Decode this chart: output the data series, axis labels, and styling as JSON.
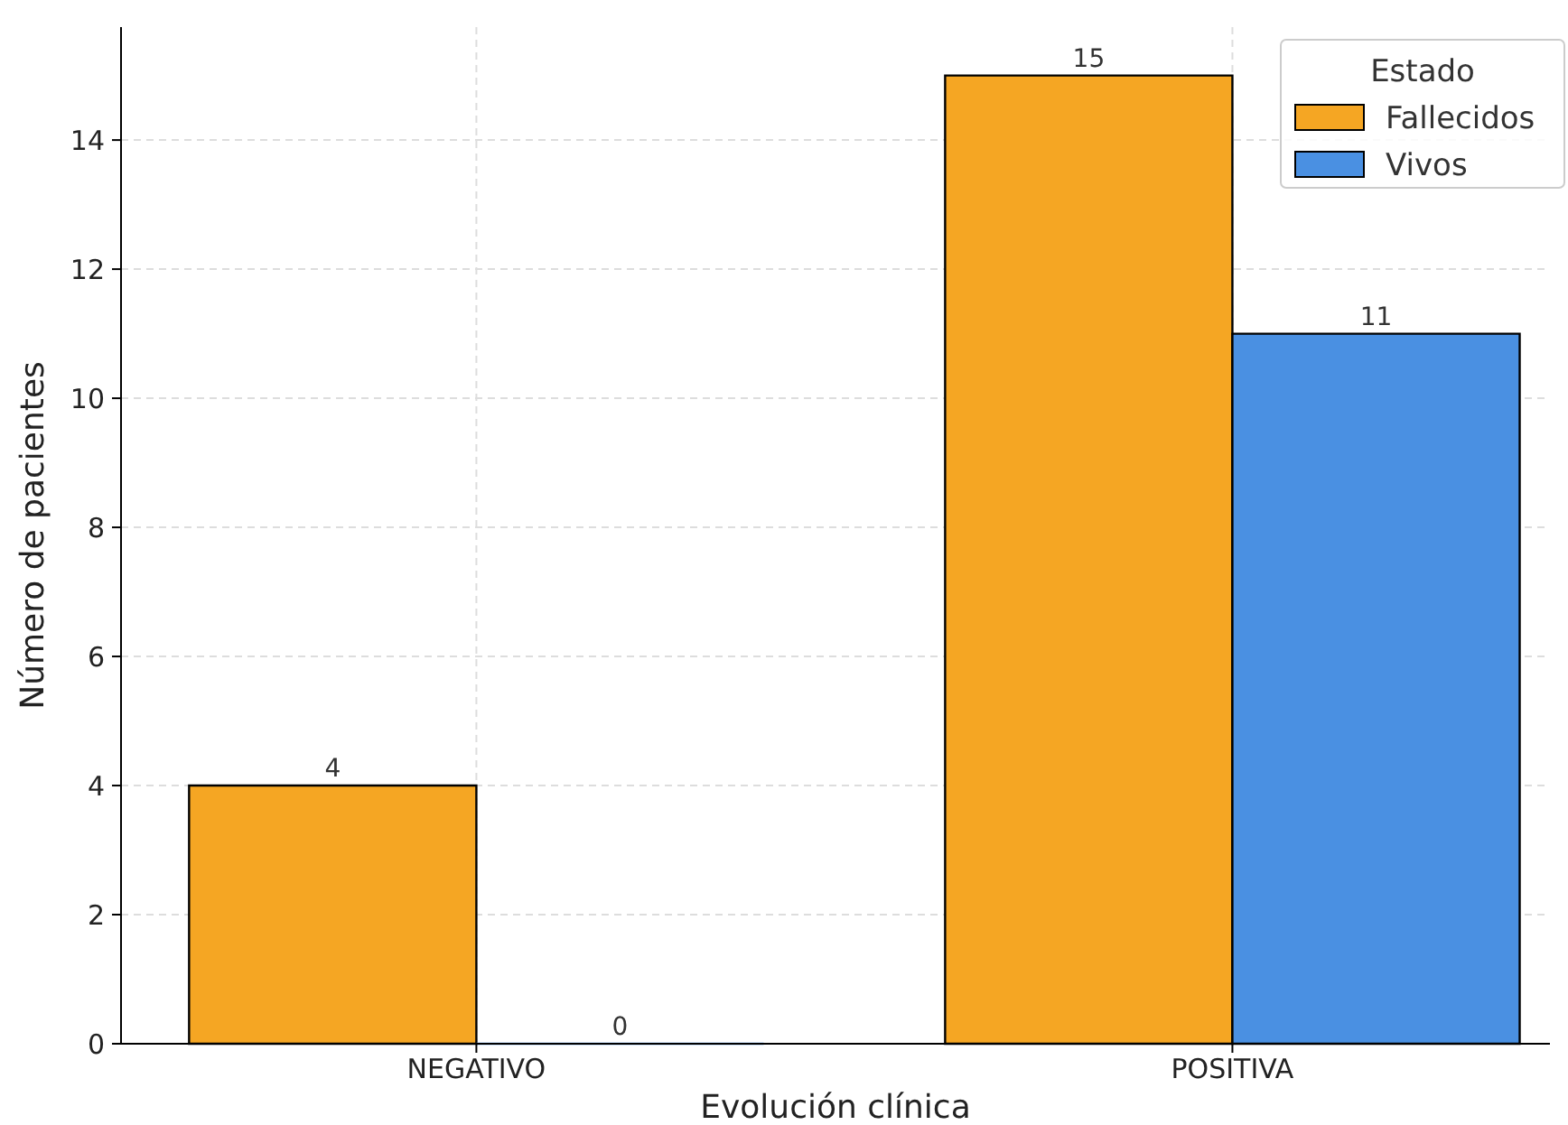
{
  "chart_data": {
    "type": "bar",
    "xlabel": "Evolución clínica",
    "ylabel": "Número de pacientes",
    "legend_title": "Estado",
    "categories": [
      "NEGATIVO",
      "POSITIVA"
    ],
    "series": [
      {
        "name": "Fallecidos",
        "color": "#f5a623",
        "values": [
          4,
          15
        ]
      },
      {
        "name": "Vivos",
        "color": "#4a90e2",
        "values": [
          0,
          11
        ]
      }
    ],
    "ylim": [
      0,
      15.75
    ],
    "yticks": [
      0,
      2,
      4,
      6,
      8,
      10,
      12,
      14
    ],
    "grid": true,
    "legend": "top right",
    "data_labels": true
  }
}
